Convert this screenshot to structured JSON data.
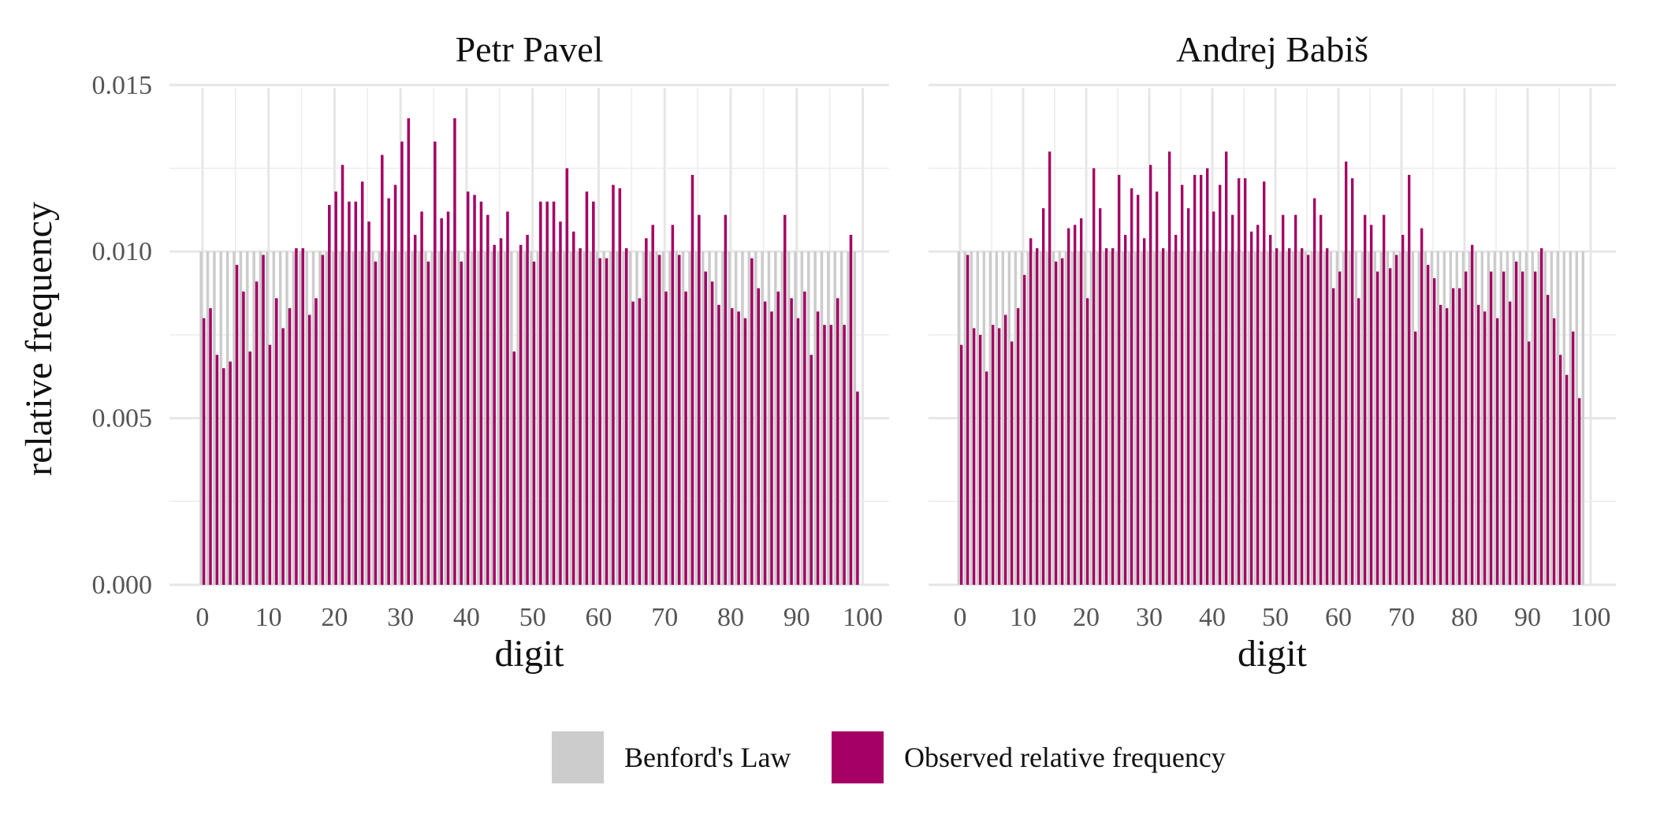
{
  "chart_data": {
    "type": "bar",
    "ylabel": "relative frequency",
    "ylim": [
      0,
      0.0149
    ],
    "y_ticks": [
      "0.000",
      "0.005",
      "0.010",
      "0.015"
    ],
    "y_tick_values": [
      0,
      0.005,
      0.01,
      0.015
    ],
    "x_ticks": [
      0,
      10,
      20,
      30,
      40,
      50,
      60,
      70,
      80,
      90,
      100
    ],
    "x_tick_labels": [
      "0",
      "10",
      "20",
      "30",
      "40",
      "50",
      "60",
      "70",
      "80",
      "90",
      "100"
    ],
    "xlim": [
      -5,
      104
    ],
    "grid": true,
    "legend_position": "bottom",
    "legend": [
      {
        "name": "Benford's Law",
        "color": "#cccccc"
      },
      {
        "name": "Observed relative frequency",
        "color": "#a50064"
      }
    ],
    "panels": [
      {
        "title": "Petr Pavel",
        "xlabel": "digit",
        "digits_start": 0,
        "digits_end": 99,
        "benford": 0.01,
        "observed": [
          0.008,
          0.0083,
          0.0069,
          0.0065,
          0.0067,
          0.0096,
          0.0088,
          0.007,
          0.0091,
          0.0099,
          0.0072,
          0.0086,
          0.0077,
          0.0083,
          0.0101,
          0.0101,
          0.0081,
          0.0086,
          0.0099,
          0.0114,
          0.0118,
          0.0126,
          0.0115,
          0.0115,
          0.0121,
          0.0109,
          0.0097,
          0.0129,
          0.0116,
          0.012,
          0.0133,
          0.014,
          0.0105,
          0.0112,
          0.0097,
          0.0133,
          0.011,
          0.0112,
          0.014,
          0.0097,
          0.0118,
          0.0117,
          0.0115,
          0.0111,
          0.0102,
          0.0104,
          0.0112,
          0.007,
          0.0102,
          0.0105,
          0.0097,
          0.0115,
          0.0115,
          0.0115,
          0.0109,
          0.0125,
          0.0106,
          0.0101,
          0.0118,
          0.0115,
          0.0098,
          0.0098,
          0.012,
          0.0119,
          0.0101,
          0.0085,
          0.0086,
          0.0104,
          0.0108,
          0.0099,
          0.0088,
          0.0108,
          0.0099,
          0.0088,
          0.0123,
          0.0111,
          0.0094,
          0.0091,
          0.0084,
          0.0111,
          0.0083,
          0.0082,
          0.008,
          0.0098,
          0.0089,
          0.0085,
          0.0082,
          0.0088,
          0.0111,
          0.0086,
          0.008,
          0.0088,
          0.0069,
          0.0082,
          0.0078,
          0.0078,
          0.0086,
          0.0078,
          0.0105,
          0.0058
        ]
      },
      {
        "title": "Andrej Babiš",
        "xlabel": "digit",
        "digits_start": 0,
        "digits_end": 99,
        "benford": 0.01,
        "observed": [
          0.0072,
          0.0099,
          0.0077,
          0.0075,
          0.0064,
          0.0078,
          0.0077,
          0.0081,
          0.0073,
          0.0083,
          0.0093,
          0.0104,
          0.0101,
          0.0113,
          0.013,
          0.0097,
          0.0098,
          0.0107,
          0.0108,
          0.011,
          0.0086,
          0.0125,
          0.0113,
          0.0101,
          0.0101,
          0.0123,
          0.0105,
          0.0119,
          0.0117,
          0.0104,
          0.0126,
          0.0118,
          0.0101,
          0.013,
          0.0105,
          0.012,
          0.0113,
          0.0123,
          0.0123,
          0.0125,
          0.0112,
          0.012,
          0.013,
          0.0111,
          0.0122,
          0.0122,
          0.0106,
          0.0108,
          0.0121,
          0.0105,
          0.0101,
          0.0111,
          0.0101,
          0.0111,
          0.0101,
          0.0099,
          0.0116,
          0.0111,
          0.0101,
          0.0089,
          0.0094,
          0.0127,
          0.0122,
          0.0086,
          0.0111,
          0.0108,
          0.0094,
          0.0111,
          0.0095,
          0.0099,
          0.0105,
          0.0123,
          0.0076,
          0.0107,
          0.0096,
          0.0092,
          0.0084,
          0.0083,
          0.0089,
          0.0089,
          0.0094,
          0.0102,
          0.0084,
          0.0082,
          0.0094,
          0.008,
          0.0094,
          0.0085,
          0.0097,
          0.0094,
          0.0073,
          0.0094,
          0.0101,
          0.0087,
          0.008,
          0.0069,
          0.0063,
          0.0076,
          0.0056,
          0.0
        ]
      }
    ]
  }
}
